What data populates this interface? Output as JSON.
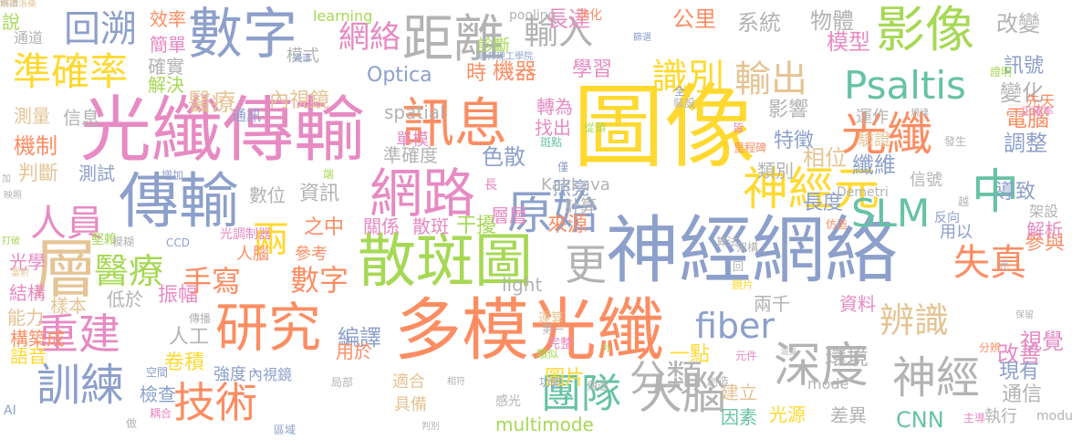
{
  "words": [
    {
      "text": "圖像",
      "color": "#ffd92f"
    },
    {
      "text": "光纖傳輸",
      "color": "#e78ac3"
    },
    {
      "text": "神經網絡",
      "color": "#8da0cb"
    },
    {
      "text": "多模光纖",
      "color": "#fc8d62"
    },
    {
      "text": "散斑圖",
      "color": "#a6d854"
    },
    {
      "text": "傳輸",
      "color": "#8da0cb"
    },
    {
      "text": "數字",
      "color": "#8da0cb"
    },
    {
      "text": "訊息",
      "color": "#fc8d62"
    },
    {
      "text": "研究",
      "color": "#fc8d62"
    },
    {
      "text": "網路",
      "color": "#e78ac3"
    },
    {
      "text": "距離",
      "color": "#b3b3b3"
    },
    {
      "text": "影像",
      "color": "#a6d854"
    },
    {
      "text": "光纖",
      "color": "#fc8d62"
    },
    {
      "text": "神經元",
      "color": "#ffd92f"
    },
    {
      "text": "原始",
      "color": "#8da0cb"
    },
    {
      "text": "深度",
      "color": "#b3b3b3"
    },
    {
      "text": "神經",
      "color": "#b3b3b3"
    },
    {
      "text": "大腦",
      "color": "#b3b3b3"
    },
    {
      "text": "技術",
      "color": "#fc8d62"
    },
    {
      "text": "訓練",
      "color": "#8da0cb"
    },
    {
      "text": "重建",
      "color": "#e78ac3"
    },
    {
      "text": "團隊",
      "color": "#66c2a5"
    },
    {
      "text": "分類",
      "color": "#b3b3b3"
    },
    {
      "text": "準確率",
      "color": "#ffd92f"
    },
    {
      "text": "回溯",
      "color": "#8da0cb"
    },
    {
      "text": "人員",
      "color": "#e78ac3"
    },
    {
      "text": "醫療",
      "color": "#a6d854"
    },
    {
      "text": "手寫",
      "color": "#fc8d62"
    },
    {
      "text": "數字",
      "color": "#fc8d62"
    },
    {
      "text": "識別",
      "color": "#ffd92f"
    },
    {
      "text": "輸出",
      "color": "#e5c494"
    },
    {
      "text": "輸入",
      "color": "#b3b3b3"
    },
    {
      "text": "Psaltis",
      "color": "#66c2a5"
    },
    {
      "text": "SLM",
      "color": "#66c2a5"
    },
    {
      "text": "中",
      "color": "#66c2a5"
    },
    {
      "text": "失真",
      "color": "#fc8d62"
    },
    {
      "text": "辨識",
      "color": "#e5c494"
    },
    {
      "text": "fiber",
      "color": "#8da0cb"
    },
    {
      "text": "更",
      "color": "#b3b3b3"
    },
    {
      "text": "層",
      "color": "#e5c494"
    },
    {
      "text": "兩",
      "color": "#ffd92f"
    },
    {
      "text": "網絡",
      "color": "#e78ac3"
    },
    {
      "text": "長達",
      "color": "#e78ac3"
    },
    {
      "text": "公里",
      "color": "#fc8d62"
    },
    {
      "text": "系統",
      "color": "#b3b3b3"
    },
    {
      "text": "物體",
      "color": "#b3b3b3"
    },
    {
      "text": "改變",
      "color": "#b3b3b3"
    },
    {
      "text": "模型",
      "color": "#e78ac3"
    },
    {
      "text": "醫療",
      "color": "#e5c494"
    },
    {
      "text": "內視鏡",
      "color": "#e5c494"
    },
    {
      "text": "Optica",
      "color": "#8da0cb"
    },
    {
      "text": "時",
      "color": "#fc8d62"
    },
    {
      "text": "機器",
      "color": "#fc8d62"
    },
    {
      "text": "學習",
      "color": "#e78ac3"
    },
    {
      "text": "訊號",
      "color": "#8da0cb"
    },
    {
      "text": "變化",
      "color": "#b3b3b3"
    },
    {
      "text": "影響",
      "color": "#b3b3b3"
    },
    {
      "text": "電腦",
      "color": "#fc8d62"
    },
    {
      "text": "運作",
      "color": "#b3b3b3"
    },
    {
      "text": "驗證",
      "color": "#e5c494"
    },
    {
      "text": "特徵",
      "color": "#8da0cb"
    },
    {
      "text": "調整",
      "color": "#8da0cb"
    },
    {
      "text": "機制",
      "color": "#fc8d62"
    },
    {
      "text": "判斷",
      "color": "#e5c494"
    },
    {
      "text": "測試",
      "color": "#8da0cb"
    },
    {
      "text": "準確度",
      "color": "#b3b3b3"
    },
    {
      "text": "色散",
      "color": "#8da0cb"
    },
    {
      "text": "照亮",
      "color": "#8da0cb"
    },
    {
      "text": "類別",
      "color": "#b3b3b3"
    },
    {
      "text": "相位",
      "color": "#e5c494"
    },
    {
      "text": "纖維",
      "color": "#8da0cb"
    },
    {
      "text": "信號",
      "color": "#b3b3b3"
    },
    {
      "text": "導致",
      "color": "#8da0cb"
    },
    {
      "text": "數位",
      "color": "#b3b3b3"
    },
    {
      "text": "資訊",
      "color": "#b3b3b3"
    },
    {
      "text": "Kakkava",
      "color": "#b3b3b3"
    },
    {
      "text": "長度",
      "color": "#8da0cb"
    },
    {
      "text": "之中",
      "color": "#fc8d62"
    },
    {
      "text": "關係",
      "color": "#e78ac3"
    },
    {
      "text": "散斑",
      "color": "#e78ac3"
    },
    {
      "text": "干擾",
      "color": "#a6d854"
    },
    {
      "text": "來源",
      "color": "#fc8d62"
    },
    {
      "text": "用以",
      "color": "#8da0cb"
    },
    {
      "text": "參與",
      "color": "#fc8d62"
    },
    {
      "text": "編譯",
      "color": "#8da0cb"
    },
    {
      "text": "用於",
      "color": "#fc8d62"
    },
    {
      "text": "視覺",
      "color": "#e78ac3"
    },
    {
      "text": "環境",
      "color": "#b3b3b3"
    },
    {
      "text": "改善",
      "color": "#e78ac3"
    },
    {
      "text": "人工",
      "color": "#b3b3b3"
    },
    {
      "text": "卷積",
      "color": "#ffd92f"
    },
    {
      "text": "強度",
      "color": "#8da0cb"
    },
    {
      "text": "內視鏡",
      "color": "#8da0cb"
    },
    {
      "text": "適合",
      "color": "#e5c494"
    },
    {
      "text": "圖片",
      "color": "#ffd92f"
    },
    {
      "text": "multimode",
      "color": "#a6d854"
    },
    {
      "text": "建立",
      "color": "#e5c494"
    },
    {
      "text": "因素",
      "color": "#66c2a5"
    },
    {
      "text": "光源",
      "color": "#ffd92f"
    },
    {
      "text": "差異",
      "color": "#b3b3b3"
    },
    {
      "text": "CNN",
      "color": "#66c2a5"
    },
    {
      "text": "執行",
      "color": "#b3b3b3"
    },
    {
      "text": "通信",
      "color": "#b3b3b3"
    },
    {
      "text": "現有",
      "color": "#8da0cb"
    },
    {
      "text": "振幅",
      "color": "#e78ac3"
    },
    {
      "text": "低於",
      "color": "#b3b3b3"
    },
    {
      "text": "樣本",
      "color": "#e5c494"
    },
    {
      "text": "參考",
      "color": "#fc8d62"
    },
    {
      "text": "人腦",
      "color": "#fc8d62"
    },
    {
      "text": "檢查",
      "color": "#8da0cb"
    },
    {
      "text": "具備",
      "color": "#e5c494"
    },
    {
      "text": "一點",
      "color": "#ffd92f"
    },
    {
      "text": "兩千",
      "color": "#b3b3b3"
    },
    {
      "text": "資料",
      "color": "#e78ac3"
    },
    {
      "text": "mode",
      "color": "#b3b3b3"
    },
    {
      "text": "效率",
      "color": "#fc8d62"
    },
    {
      "text": "learning",
      "color": "#a6d854"
    },
    {
      "text": "pooling",
      "color": "#b3b3b3"
    },
    {
      "text": "池化",
      "color": "#fc8d62"
    },
    {
      "text": "簡單",
      "color": "#e78ac3"
    },
    {
      "text": "確實",
      "color": "#b3b3b3"
    },
    {
      "text": "解決",
      "color": "#a6d854"
    },
    {
      "text": "測量",
      "color": "#e5c494"
    },
    {
      "text": "通道",
      "color": "#b3b3b3"
    },
    {
      "text": "通訊",
      "color": "#8da0cb"
    },
    {
      "text": "說",
      "color": "#a6d854"
    },
    {
      "text": "模式",
      "color": "#b3b3b3"
    },
    {
      "text": "通道",
      "color": "#8da0cb"
    },
    {
      "text": "診斷",
      "color": "#a6d854"
    },
    {
      "text": "聯邦理工學院",
      "color": "#8da0cb"
    },
    {
      "text": "篩選",
      "color": "#8da0cb"
    },
    {
      "text": "證明",
      "color": "#a6d854"
    },
    {
      "text": "先天",
      "color": "#fc8d62"
    },
    {
      "text": "正確率",
      "color": "#e78ac3"
    },
    {
      "text": "全",
      "color": "#8da0cb"
    },
    {
      "text": "裝設",
      "color": "#b3b3b3"
    },
    {
      "text": "轉為",
      "color": "#e78ac3"
    },
    {
      "text": "找出",
      "color": "#e78ac3"
    },
    {
      "text": "單模",
      "color": "#e78ac3"
    },
    {
      "text": "斑點",
      "color": "#66c2a5"
    },
    {
      "text": "從頭",
      "color": "#a6d854"
    },
    {
      "text": "皆",
      "color": "#e78ac3"
    },
    {
      "text": "里程碑",
      "color": "#fc8d62"
    },
    {
      "text": "規律",
      "color": "#b3b3b3"
    },
    {
      "text": "發生",
      "color": "#b3b3b3"
    },
    {
      "text": "spatial",
      "color": "#b3b3b3"
    },
    {
      "text": "構築成",
      "color": "#fc8d62"
    },
    {
      "text": "語音",
      "color": "#ffd92f"
    },
    {
      "text": "光學",
      "color": "#e78ac3"
    },
    {
      "text": "結構",
      "color": "#e78ac3"
    },
    {
      "text": "能力",
      "color": "#e5c494"
    },
    {
      "text": "信息",
      "color": "#b3b3b3"
    },
    {
      "text": "僅",
      "color": "#8da0cb"
    },
    {
      "text": "長",
      "color": "#e78ac3"
    },
    {
      "text": "層層",
      "color": "#e78ac3"
    },
    {
      "text": "計算",
      "color": "#b3b3b3"
    },
    {
      "text": "端",
      "color": "#a6d854"
    },
    {
      "text": "增加",
      "color": "#8da0cb"
    },
    {
      "text": "加",
      "color": "#b3b3b3"
    },
    {
      "text": "映照",
      "color": "#b3b3b3"
    },
    {
      "text": "打破",
      "color": "#a6d854"
    },
    {
      "text": "雷射",
      "color": "#e5c494"
    },
    {
      "text": "堅賴",
      "color": "#a6d854"
    },
    {
      "text": "模糊",
      "color": "#b3b3b3"
    },
    {
      "text": "CCD",
      "color": "#8da0cb"
    },
    {
      "text": "光調制器",
      "color": "#e78ac3"
    },
    {
      "text": "Demetri",
      "color": "#b3b3b3"
    },
    {
      "text": "反向",
      "color": "#8da0cb"
    },
    {
      "text": "仿造",
      "color": "#fc8d62"
    },
    {
      "text": "架設",
      "color": "#b3b3b3"
    },
    {
      "text": "解析",
      "color": "#e78ac3"
    },
    {
      "text": "越",
      "color": "#b3b3b3"
    },
    {
      "text": "光",
      "color": "#b3b3b3"
    },
    {
      "text": "架構",
      "color": "#b3b3b3"
    },
    {
      "text": "算法",
      "color": "#b3b3b3"
    },
    {
      "text": "第一",
      "color": "#b3b3b3"
    },
    {
      "text": "light",
      "color": "#b3b3b3"
    },
    {
      "text": "回",
      "color": "#b3b3b3"
    },
    {
      "text": "鏡片",
      "color": "#ffd92f"
    },
    {
      "text": "保留",
      "color": "#b3b3b3"
    },
    {
      "text": "運算",
      "color": "#e5c494"
    },
    {
      "text": "完整",
      "color": "#e78ac3"
    },
    {
      "text": "類似",
      "color": "#a6d854"
    },
    {
      "text": "外",
      "color": "#a6d854"
    },
    {
      "text": "元件",
      "color": "#e78ac3"
    },
    {
      "text": "混亂",
      "color": "#b3b3b3"
    },
    {
      "text": "分辨",
      "color": "#fc8d62"
    },
    {
      "text": "創造",
      "color": "#b3b3b3"
    },
    {
      "text": "功能",
      "color": "#8da0cb"
    },
    {
      "text": "傳遞",
      "color": "#b3b3b3"
    },
    {
      "text": "相符",
      "color": "#b3b3b3"
    },
    {
      "text": "局部",
      "color": "#b3b3b3"
    },
    {
      "text": "感光",
      "color": "#b3b3b3"
    },
    {
      "text": "空間",
      "color": "#8da0cb"
    },
    {
      "text": "AI",
      "color": "#8da0cb"
    },
    {
      "text": "耦合",
      "color": "#e78ac3"
    },
    {
      "text": "做",
      "color": "#b3b3b3"
    },
    {
      "text": "區域",
      "color": "#8da0cb"
    },
    {
      "text": "判別",
      "color": "#b3b3b3"
    },
    {
      "text": "主導",
      "color": "#e78ac3"
    },
    {
      "text": "modulator",
      "color": "#b3b3b3"
    },
    {
      "text": "傳播",
      "color": "#b3b3b3"
    },
    {
      "text": "解讀",
      "color": "#b3b3b3"
    },
    {
      "text": "瑞士洛桑",
      "color": "#e5c494"
    }
  ]
}
